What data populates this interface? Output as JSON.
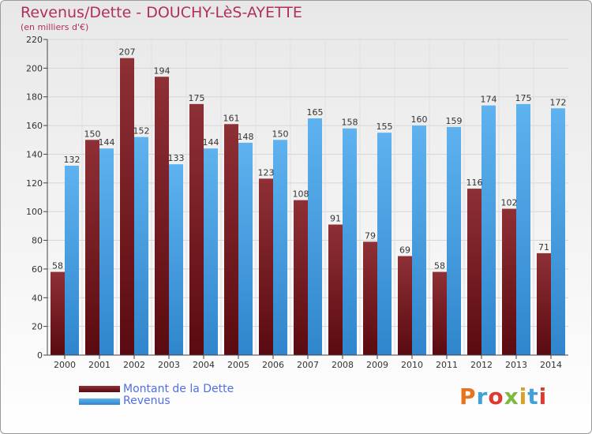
{
  "header": {
    "title": "Revenus/Dette - DOUCHY-LèS-AYETTE",
    "subtitle": "(en milliers d'€)"
  },
  "brand": {
    "logo_text": "Proxiti",
    "letter_colors": [
      "#e8731f",
      "#3fa1d8",
      "#e03a30",
      "#7bb93f",
      "#d8a22a",
      "#3fa1d8",
      "#e03a30"
    ]
  },
  "chart_data": {
    "type": "bar",
    "title": "Revenus/Dette - DOUCHY-LèS-AYETTE",
    "subtitle": "(en milliers d'€)",
    "categories": [
      "2000",
      "2001",
      "2002",
      "2003",
      "2004",
      "2005",
      "2006",
      "2007",
      "2008",
      "2009",
      "2010",
      "2011",
      "2012",
      "2013",
      "2014"
    ],
    "series": [
      {
        "name": "Montant de la Dette",
        "color": "#7a2026",
        "values": [
          58,
          150,
          207,
          194,
          175,
          161,
          123,
          108,
          91,
          79,
          69,
          58,
          116,
          102,
          71
        ]
      },
      {
        "name": "Revenus",
        "color": "#4aa3e6",
        "values": [
          132,
          144,
          152,
          133,
          144,
          148,
          150,
          165,
          158,
          155,
          160,
          159,
          174,
          175,
          172
        ]
      }
    ],
    "ylim": [
      0,
      220
    ],
    "yticks": [
      0,
      20,
      40,
      60,
      80,
      100,
      120,
      140,
      160,
      180,
      200,
      220
    ],
    "grid": true,
    "legend": "bottom-left"
  }
}
